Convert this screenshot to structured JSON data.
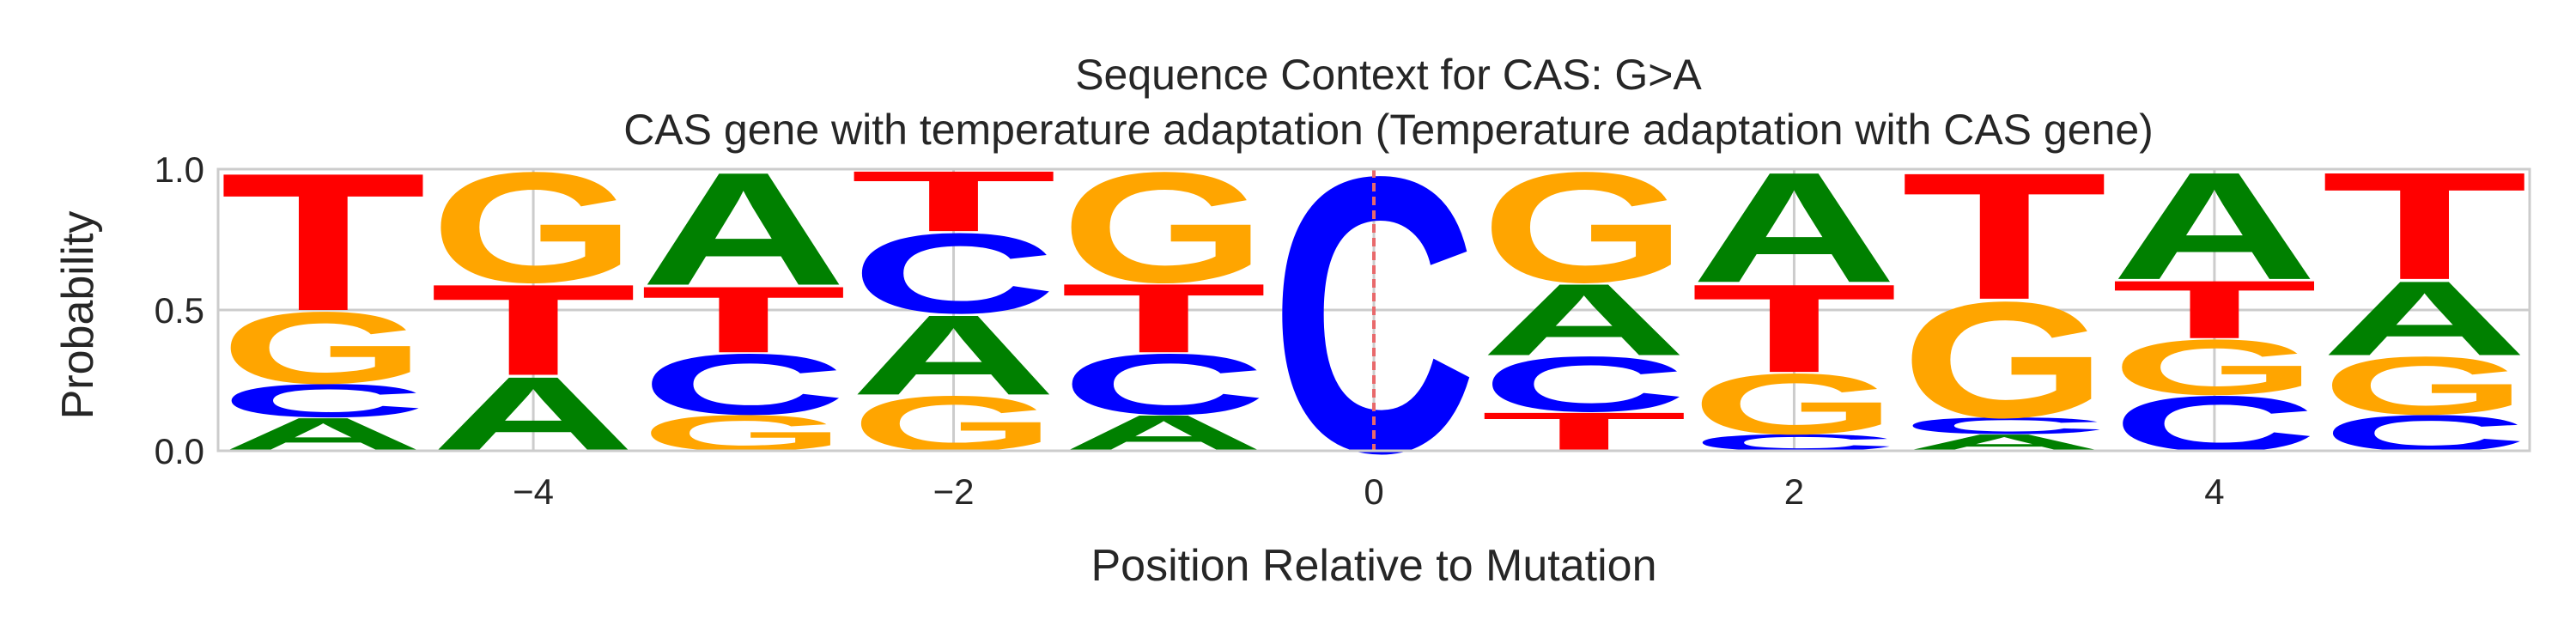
{
  "chart_data": {
    "type": "sequence_logo",
    "title": "Sequence Context for CAS: G>A",
    "subtitle": "CAS gene with temperature adaptation (Temperature adaptation with CAS gene)",
    "xlabel": "Position Relative to Mutation",
    "ylabel": "Probability",
    "xlim": [
      -5.5,
      5.5
    ],
    "ylim": [
      0,
      1
    ],
    "x_ticks": [
      -4,
      -2,
      0,
      2,
      4
    ],
    "x_tick_labels": [
      "−4",
      "−2",
      "0",
      "2",
      "4"
    ],
    "y_ticks": [
      0.0,
      0.5,
      1.0
    ],
    "y_tick_labels": [
      "0.0",
      "0.5",
      "1.0"
    ],
    "grid": true,
    "mutation_marker_x": 0,
    "colors": {
      "A": "#008000",
      "C": "#0000ff",
      "G": "#ffa500",
      "T": "#ff0000",
      "marker": "#e8696b",
      "grid": "#cccccc",
      "frame": "#cccccc"
    },
    "positions": [
      {
        "x": -5,
        "stack": [
          [
            "A",
            0.12
          ],
          [
            "C",
            0.12
          ],
          [
            "G",
            0.26
          ],
          [
            "T",
            0.5
          ]
        ]
      },
      {
        "x": -4,
        "stack": [
          [
            "A",
            0.27
          ],
          [
            "T",
            0.33
          ],
          [
            "G",
            0.4
          ]
        ]
      },
      {
        "x": -3,
        "stack": [
          [
            "G",
            0.13
          ],
          [
            "C",
            0.22
          ],
          [
            "T",
            0.24
          ],
          [
            "A",
            0.41
          ]
        ]
      },
      {
        "x": -2,
        "stack": [
          [
            "G",
            0.2
          ],
          [
            "A",
            0.29
          ],
          [
            "C",
            0.29
          ],
          [
            "T",
            0.22
          ]
        ]
      },
      {
        "x": -1,
        "stack": [
          [
            "A",
            0.13
          ],
          [
            "C",
            0.22
          ],
          [
            "T",
            0.25
          ],
          [
            "G",
            0.4
          ]
        ]
      },
      {
        "x": 0,
        "stack": [
          [
            "C",
            1.0
          ]
        ]
      },
      {
        "x": 1,
        "stack": [
          [
            "T",
            0.14
          ],
          [
            "C",
            0.2
          ],
          [
            "A",
            0.26
          ],
          [
            "G",
            0.4
          ]
        ]
      },
      {
        "x": 2,
        "stack": [
          [
            "C",
            0.06
          ],
          [
            "G",
            0.22
          ],
          [
            "T",
            0.32
          ],
          [
            "A",
            0.4
          ]
        ]
      },
      {
        "x": 3,
        "stack": [
          [
            "A",
            0.06
          ],
          [
            "C",
            0.06
          ],
          [
            "G",
            0.42
          ],
          [
            "T",
            0.46
          ]
        ]
      },
      {
        "x": 4,
        "stack": [
          [
            "C",
            0.2
          ],
          [
            "G",
            0.2
          ],
          [
            "T",
            0.21
          ],
          [
            "A",
            0.39
          ]
        ]
      },
      {
        "x": 5,
        "stack": [
          [
            "C",
            0.13
          ],
          [
            "G",
            0.21
          ],
          [
            "A",
            0.27
          ],
          [
            "T",
            0.39
          ]
        ]
      }
    ]
  }
}
